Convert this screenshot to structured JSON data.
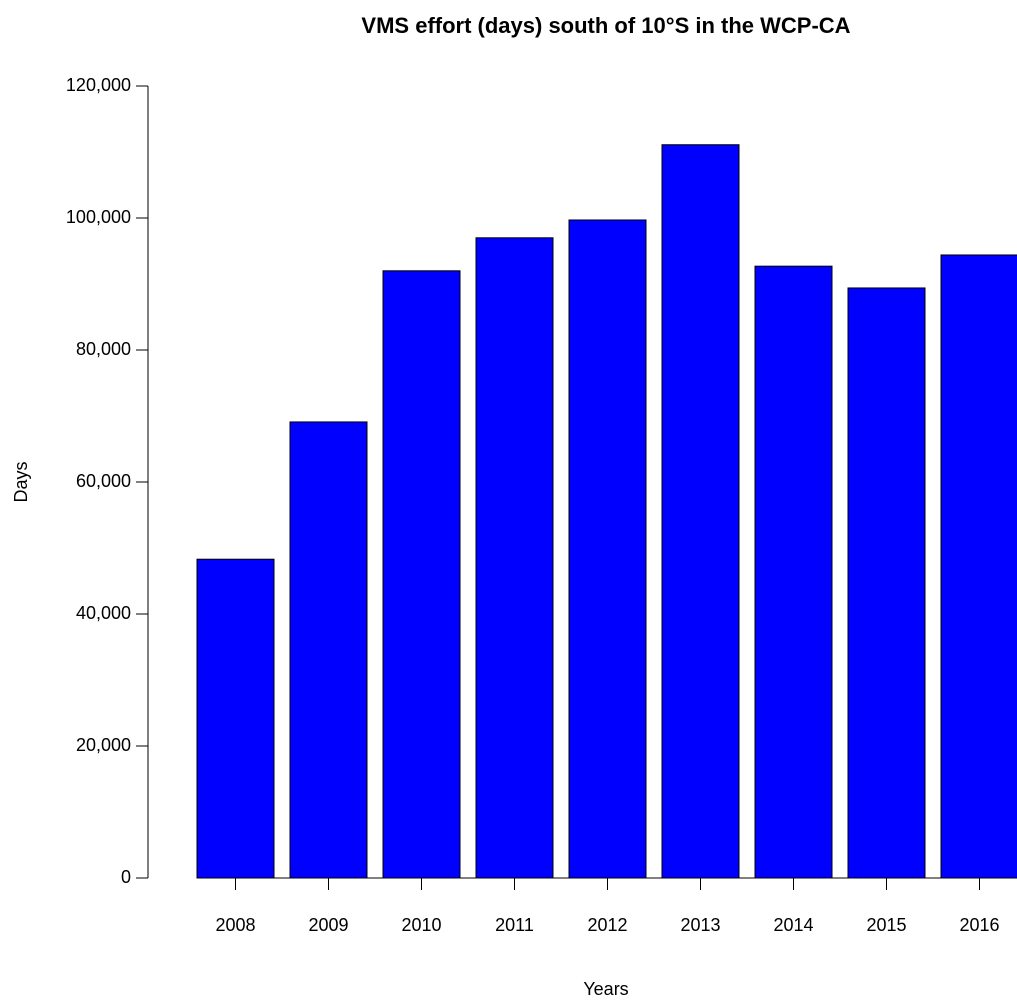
{
  "chart_data": {
    "type": "bar",
    "title": "VMS effort (days) south of 10°S in the WCP-CA",
    "x_label": "Years",
    "y_label": "Days",
    "categories": [
      "2008",
      "2009",
      "2010",
      "2011",
      "2012",
      "2013",
      "2014",
      "2015",
      "2016"
    ],
    "values": [
      48300,
      69100,
      92000,
      97000,
      99700,
      111100,
      92700,
      89400,
      94400
    ],
    "color": "#0000ff",
    "ylim": [
      0,
      120000
    ],
    "yticks": [
      0,
      {
        "value": 20000,
        "label": "20,000"
      },
      {
        "value": 40000,
        "label": "40,000"
      },
      {
        "value": 60000,
        "label": "60,000"
      },
      {
        "value": 80000,
        "label": "80,000"
      },
      {
        "value": 100000,
        "label": "100,000"
      },
      {
        "value": 120000,
        "label": "120,000"
      }
    ],
    "grid": false
  }
}
